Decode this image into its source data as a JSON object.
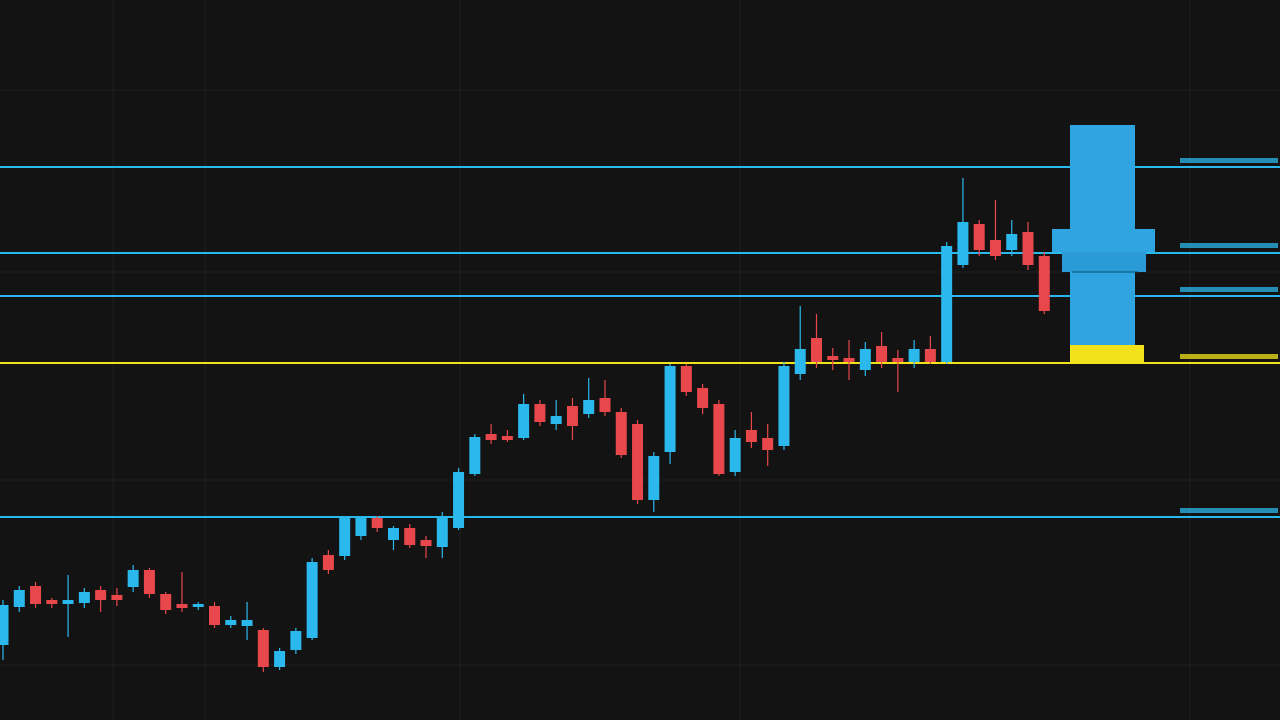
{
  "chart_data": {
    "type": "candlestick",
    "ylim": [
      0,
      720
    ],
    "up_color": "#2bb8ec",
    "down_color": "#e8474b",
    "open": [
      75,
      113,
      134,
      120,
      116,
      117,
      130,
      125,
      133,
      150,
      126,
      116,
      113,
      114,
      95,
      94,
      90,
      53,
      70,
      82,
      165,
      164,
      184,
      202,
      180,
      192,
      180,
      173,
      192,
      246,
      286,
      284,
      282,
      316,
      296,
      314,
      306,
      322,
      308,
      296,
      220,
      268,
      354,
      332,
      316,
      248,
      290,
      282,
      274,
      346,
      382,
      364,
      362,
      350,
      374,
      362,
      358,
      371,
      358,
      455,
      496,
      480,
      470,
      488,
      464
    ],
    "high": [
      120,
      134,
      138,
      122,
      145,
      132,
      134,
      132,
      155,
      152,
      128,
      148,
      118,
      118,
      104,
      118,
      92,
      72,
      92,
      162,
      170,
      204,
      204,
      204,
      194,
      196,
      184,
      208,
      252,
      286,
      296,
      290,
      326,
      320,
      320,
      322,
      342,
      340,
      312,
      300,
      268,
      356,
      356,
      336,
      320,
      290,
      308,
      296,
      358,
      414,
      406,
      372,
      380,
      378,
      388,
      370,
      380,
      384,
      478,
      542,
      500,
      520,
      500,
      498,
      468
    ],
    "low": [
      60,
      108,
      112,
      112,
      83,
      112,
      108,
      114,
      128,
      122,
      106,
      108,
      110,
      92,
      92,
      80,
      48,
      50,
      66,
      80,
      146,
      160,
      180,
      188,
      170,
      172,
      162,
      162,
      190,
      244,
      276,
      278,
      280,
      294,
      290,
      280,
      302,
      304,
      262,
      216,
      208,
      256,
      324,
      306,
      244,
      244,
      272,
      254,
      270,
      340,
      352,
      350,
      340,
      344,
      352,
      328,
      352,
      356,
      356,
      452,
      464,
      460,
      464,
      450,
      406
    ],
    "close": [
      115,
      130,
      116,
      116,
      120,
      128,
      120,
      120,
      150,
      126,
      110,
      112,
      116,
      95,
      100,
      100,
      53,
      69,
      89,
      158,
      150,
      202,
      202,
      192,
      192,
      175,
      174,
      204,
      248,
      283,
      280,
      280,
      316,
      298,
      304,
      294,
      320,
      308,
      265,
      220,
      264,
      354,
      328,
      312,
      246,
      282,
      278,
      270,
      354,
      371,
      358,
      360,
      358,
      371,
      358,
      358,
      371,
      358,
      474,
      498,
      470,
      464,
      486,
      455,
      409
    ],
    "levels": [
      {
        "value": 553,
        "color": "#2bb8ec"
      },
      {
        "value": 467,
        "color": "#2bb8ec"
      },
      {
        "value": 424,
        "color": "#2bb8ec"
      },
      {
        "value": 357,
        "color": "#f2e21c"
      },
      {
        "value": 203,
        "color": "#2bb8ec"
      }
    ]
  }
}
